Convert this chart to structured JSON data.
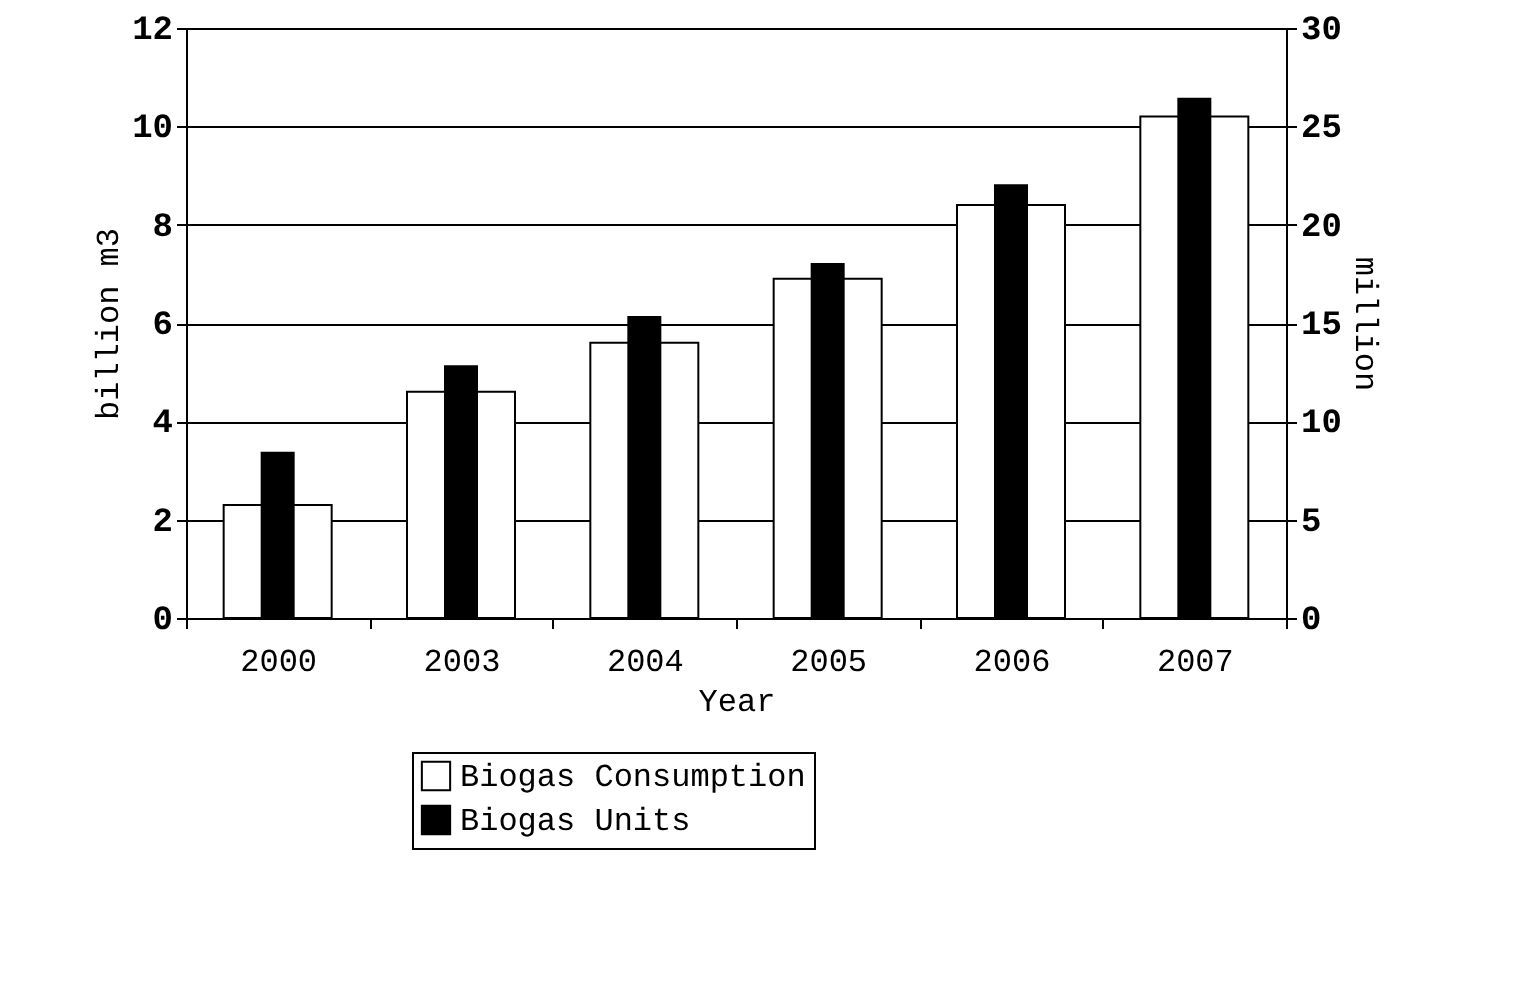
{
  "chart_data": {
    "type": "bar",
    "xlabel": "Year",
    "ylabel": "billion m3",
    "y2label": "million",
    "categories": [
      "2000",
      "2003",
      "2004",
      "2005",
      "2006",
      "2007"
    ],
    "series": [
      {
        "name": "Biogas Consumption",
        "color": "#ffffff",
        "values": [
          2.3,
          4.6,
          5.6,
          6.9,
          8.4,
          10.2
        ]
      },
      {
        "name": "Biogas Units",
        "color": "#000000",
        "axis": "y2",
        "values": [
          8.4,
          12.8,
          15.3,
          18.0,
          22.0,
          26.4
        ]
      }
    ],
    "ylim": [
      0,
      12
    ],
    "yticks": [
      0,
      2,
      4,
      6,
      8,
      10,
      12
    ],
    "y2lim": [
      0,
      30
    ],
    "y2ticks": [
      0,
      5,
      10,
      15,
      20,
      25,
      30
    ],
    "grid": "y",
    "legend": "bottom"
  }
}
